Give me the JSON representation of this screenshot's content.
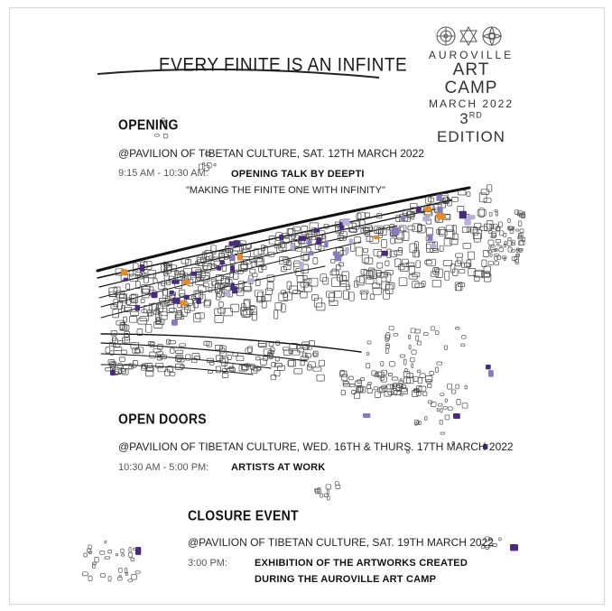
{
  "poster": {
    "title": "EVERY FINITE IS AN INFINTE",
    "brand": {
      "line1": "AUROVILLE",
      "line2": "ART CAMP",
      "line3": "MARCH 2022",
      "edition_num": "3",
      "edition_suffix": "RD",
      "edition_word": "EDITION"
    },
    "opening": {
      "heading": "OPENING",
      "location": "@PAVILION OF TIBETAN CULTURE, SAT. 12TH MARCH 2022",
      "time": "9:15 AM - 10:30 AM:",
      "event": "OPENING TALK BY DEEPTI",
      "quote": "\"MAKING THE FINITE ONE WITH INFINITY\""
    },
    "open_doors": {
      "heading": "OPEN DOORS",
      "location": "@PAVILION OF TIBETAN CULTURE, WED. 16TH & THURS. 17TH MARCH 2022",
      "time": "10:30 AM - 5:00 PM:",
      "event": "ARTISTS AT WORK"
    },
    "closure": {
      "heading": "CLOSURE EVENT",
      "location": "@PAVILION OF TIBETAN CULTURE, SAT. 19TH MARCH 2022",
      "time": "3:00 PM:",
      "event_line1": "EXHIBITION OF THE ARTWORKS CREATED",
      "event_line2": "DURING THE AUROVILLE ART CAMP"
    },
    "colors": {
      "purple": "#4a2a7a",
      "lilac": "#8a7ab8",
      "orange": "#e08a2a",
      "ink": "#111111"
    },
    "icons": [
      "mandala-icon",
      "star-of-david-icon",
      "lotus-icon",
      "dragonfly-wing-illustration"
    ]
  }
}
